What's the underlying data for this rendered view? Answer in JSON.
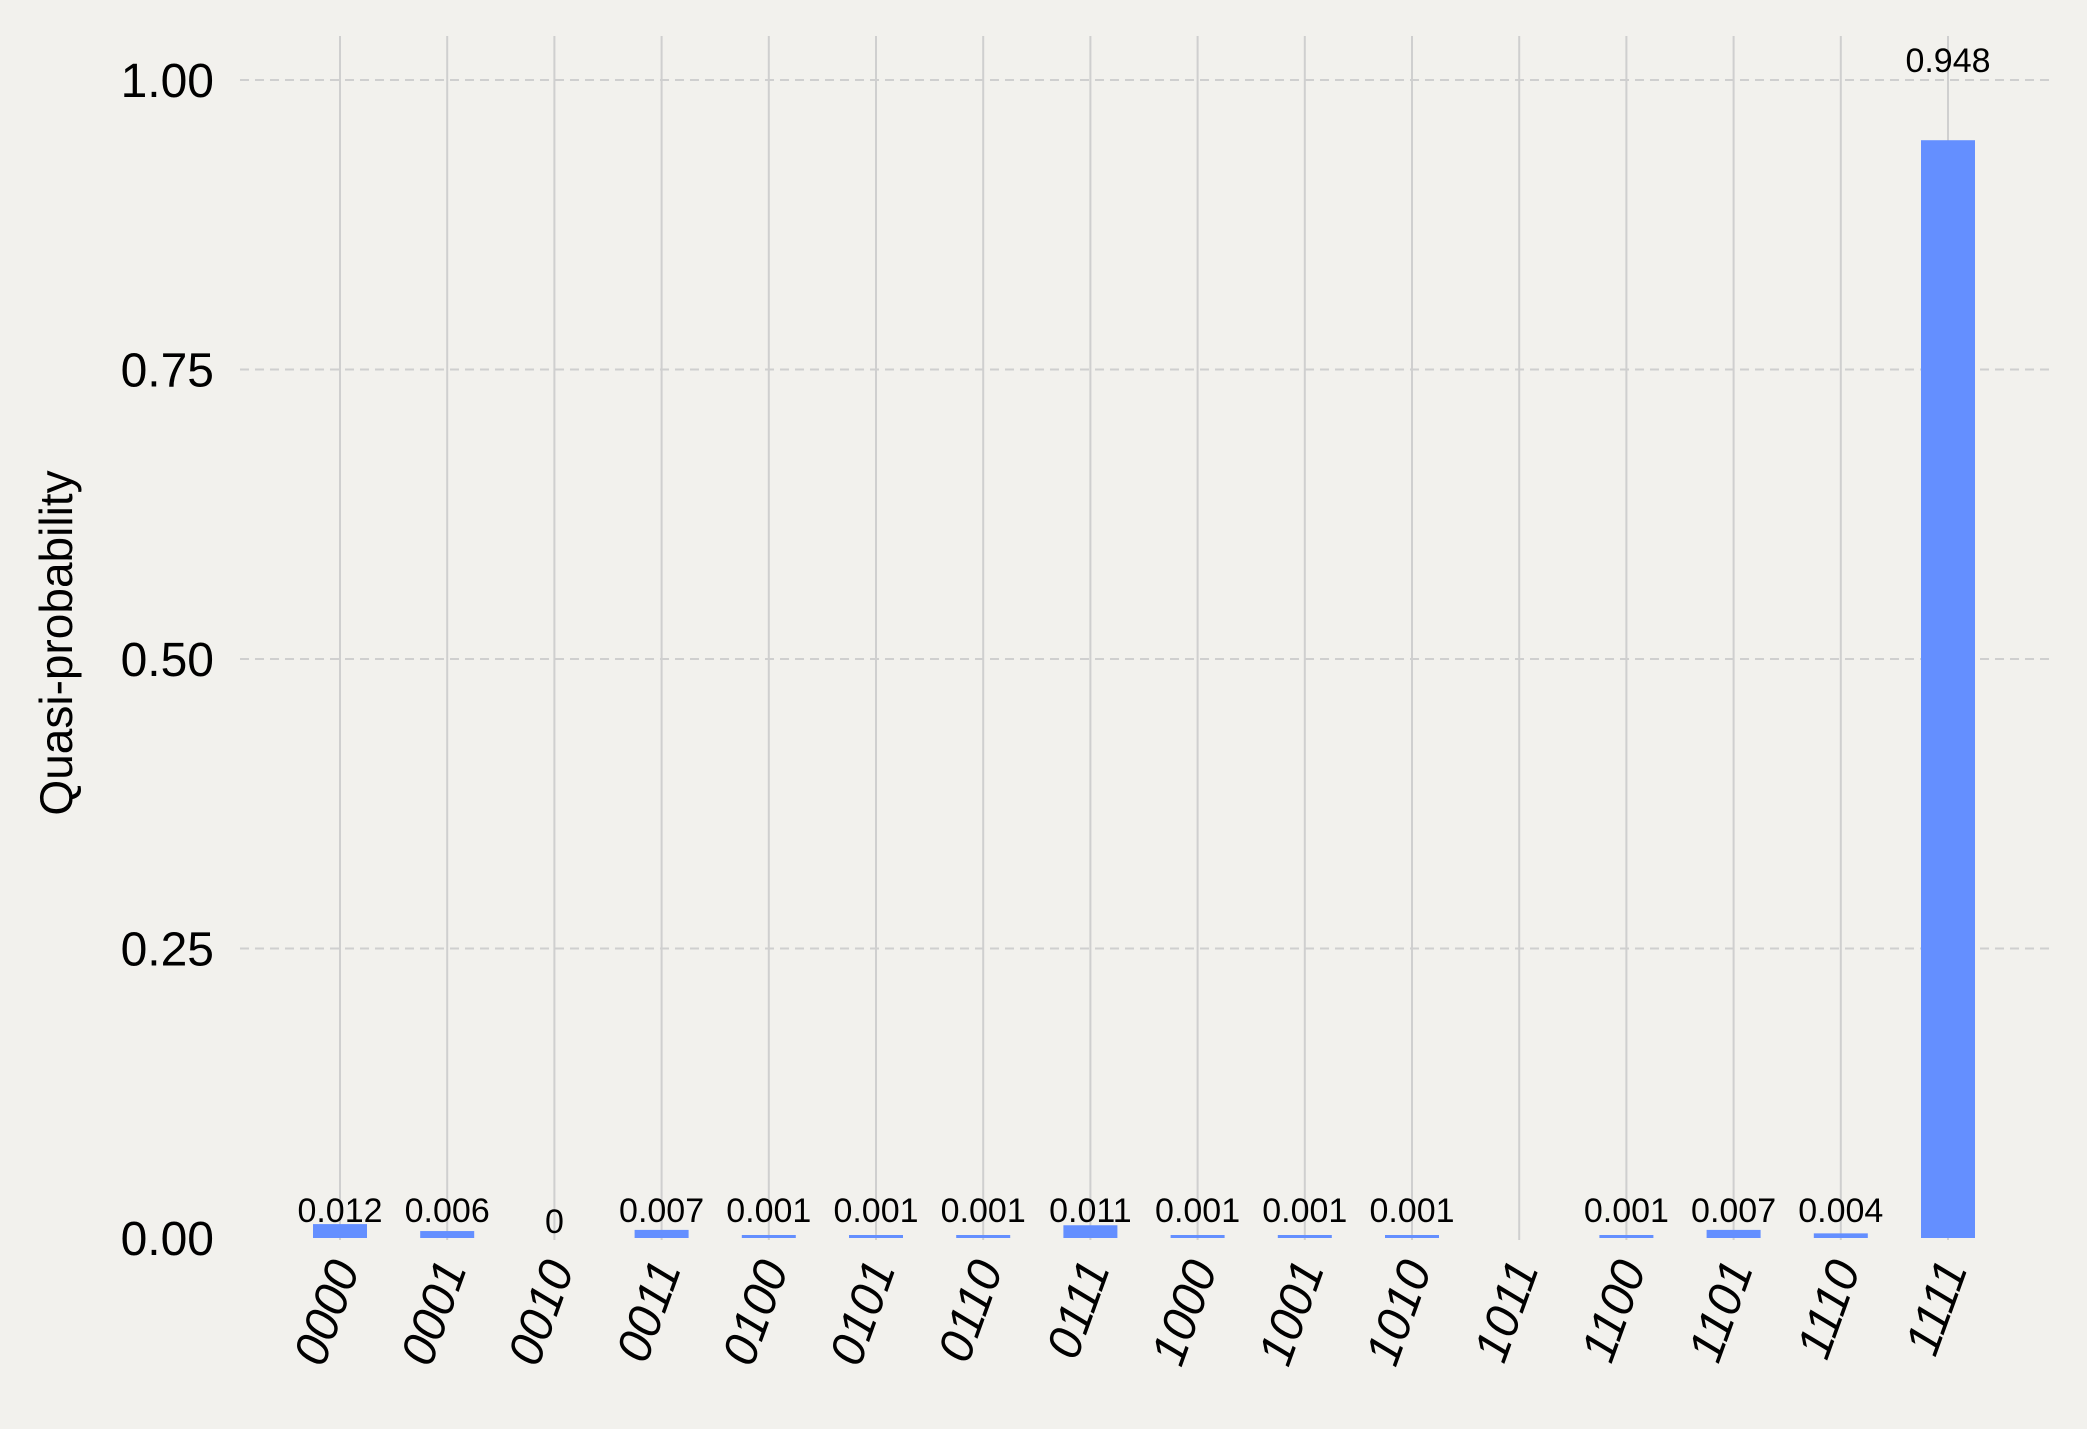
{
  "chart_data": {
    "type": "bar",
    "categories": [
      "0000",
      "0001",
      "0010",
      "0011",
      "0100",
      "0101",
      "0110",
      "0111",
      "1000",
      "1001",
      "1010",
      "1011",
      "1100",
      "1101",
      "1110",
      "1111"
    ],
    "values": [
      0.012,
      0.006,
      0,
      0.007,
      0.001,
      0.001,
      0.001,
      0.011,
      0.001,
      0.001,
      0.001,
      null,
      0.001,
      0.007,
      0.004,
      0.948
    ],
    "labels": [
      "0.012",
      "0.006",
      "0",
      "0.007",
      "0.001",
      "0.001",
      "0.001",
      "0.011",
      "0.001",
      "0.001",
      "0.001",
      "",
      "0.001",
      "0.007",
      "0.004",
      "0.948"
    ],
    "title": "",
    "xlabel": "",
    "ylabel": "Quasi-probability",
    "ylim": [
      0,
      1.05
    ],
    "yticks": [
      "0.00",
      "0.25",
      "0.50",
      "0.75",
      "1.00"
    ],
    "ytick_values": [
      0,
      0.25,
      0.5,
      0.75,
      1.0
    ],
    "grid": true,
    "bar_color": "#648fff",
    "background_color": "#f2f1ed",
    "grid_color": "#cfcfcf"
  }
}
